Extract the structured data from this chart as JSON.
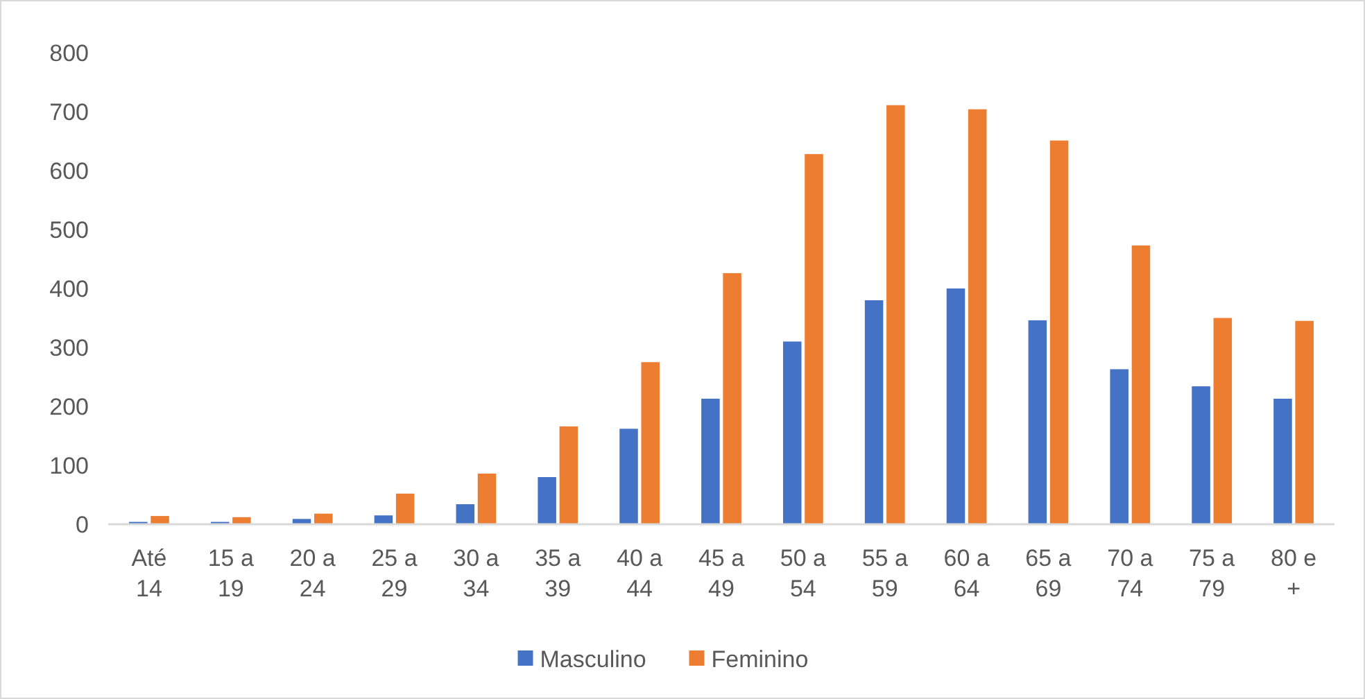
{
  "chart_data": {
    "type": "bar",
    "categories": [
      "Até 14",
      "15 a 19",
      "20 a 24",
      "25 a 29",
      "30 a 34",
      "35 a 39",
      "40 a 44",
      "45 a 49",
      "50 a 54",
      "55 a 59",
      "60 a 64",
      "65 a 69",
      "70 a 74",
      "75 a 79",
      "80 e +"
    ],
    "series": [
      {
        "name": "Masculino",
        "color": "#4472c4",
        "values": [
          4,
          4,
          9,
          15,
          34,
          80,
          162,
          213,
          310,
          380,
          400,
          346,
          263,
          234,
          213
        ]
      },
      {
        "name": "Feminino",
        "color": "#ed7d31",
        "values": [
          14,
          12,
          18,
          52,
          86,
          166,
          275,
          426,
          628,
          711,
          704,
          651,
          473,
          350,
          345
        ]
      }
    ],
    "ylim": [
      0,
      800
    ],
    "yticks": [
      0,
      100,
      200,
      300,
      400,
      500,
      600,
      700,
      800
    ],
    "grid": false,
    "legend": "bottom"
  }
}
